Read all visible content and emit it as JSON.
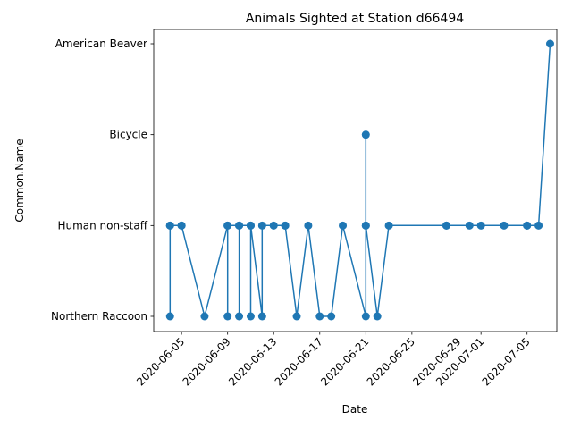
{
  "chart_data": {
    "type": "line",
    "title": "Animals Sighted at Station d66494",
    "xlabel": "Date",
    "ylabel": "Common.Name",
    "categories": [
      "Northern Raccoon",
      "Human non-staff",
      "Bicycle",
      "American Beaver"
    ],
    "x_ticks": [
      "2020-06-05",
      "2020-06-09",
      "2020-06-13",
      "2020-06-17",
      "2020-06-21",
      "2020-06-25",
      "2020-06-29",
      "2020-07-01",
      "2020-07-05"
    ],
    "xlim": [
      "2020-06-02T14:00",
      "2020-07-07T14:00"
    ],
    "grid": false,
    "color": "#1f77b4",
    "series": [
      {
        "points": [
          [
            "2020-06-04",
            "Human non-staff"
          ],
          [
            "2020-06-04",
            "Northern Raccoon"
          ],
          [
            "2020-06-04",
            "Human non-staff"
          ],
          [
            "2020-06-05",
            "Human non-staff"
          ],
          [
            "2020-06-05",
            "Human non-staff"
          ],
          [
            "2020-06-07",
            "Northern Raccoon"
          ],
          [
            "2020-06-09",
            "Human non-staff"
          ],
          [
            "2020-06-09",
            "Northern Raccoon"
          ],
          [
            "2020-06-09",
            "Human non-staff"
          ],
          [
            "2020-06-10",
            "Human non-staff"
          ],
          [
            "2020-06-10",
            "Northern Raccoon"
          ],
          [
            "2020-06-10",
            "Human non-staff"
          ],
          [
            "2020-06-11",
            "Human non-staff"
          ],
          [
            "2020-06-11",
            "Northern Raccoon"
          ],
          [
            "2020-06-11",
            "Human non-staff"
          ],
          [
            "2020-06-12",
            "Northern Raccoon"
          ],
          [
            "2020-06-12",
            "Human non-staff"
          ],
          [
            "2020-06-13",
            "Human non-staff"
          ],
          [
            "2020-06-14",
            "Human non-staff"
          ],
          [
            "2020-06-14",
            "Human non-staff"
          ],
          [
            "2020-06-15",
            "Northern Raccoon"
          ],
          [
            "2020-06-16",
            "Human non-staff"
          ],
          [
            "2020-06-17",
            "Northern Raccoon"
          ],
          [
            "2020-06-18",
            "Northern Raccoon"
          ],
          [
            "2020-06-19",
            "Human non-staff"
          ],
          [
            "2020-06-21",
            "Northern Raccoon"
          ],
          [
            "2020-06-21",
            "Human non-staff"
          ],
          [
            "2020-06-21",
            "Bicycle"
          ],
          [
            "2020-06-21",
            "Human non-staff"
          ],
          [
            "2020-06-22",
            "Northern Raccoon"
          ],
          [
            "2020-06-23",
            "Human non-staff"
          ],
          [
            "2020-06-28",
            "Human non-staff"
          ],
          [
            "2020-06-28",
            "Human non-staff"
          ],
          [
            "2020-06-30",
            "Human non-staff"
          ],
          [
            "2020-07-01",
            "Human non-staff"
          ],
          [
            "2020-07-03",
            "Human non-staff"
          ],
          [
            "2020-07-05",
            "Human non-staff"
          ],
          [
            "2020-07-05",
            "Human non-staff"
          ],
          [
            "2020-07-06",
            "Human non-staff"
          ],
          [
            "2020-07-07",
            "American Beaver"
          ]
        ]
      }
    ]
  }
}
